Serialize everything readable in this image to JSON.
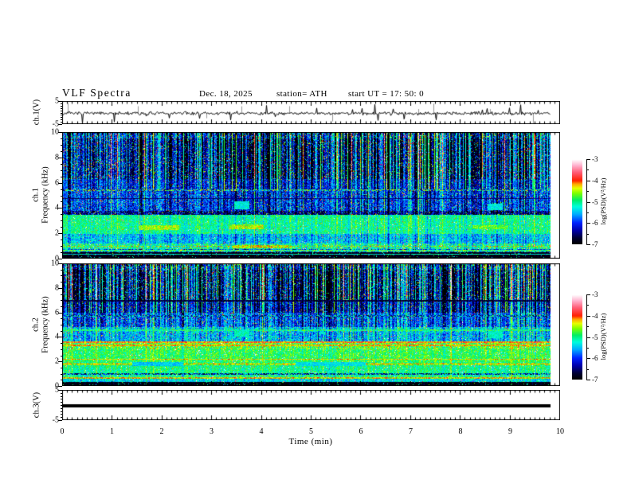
{
  "header": {
    "title": "VLF Spectra",
    "date": "Dec. 18, 2025",
    "station": "station= ATH",
    "start_ut": "start UT =  17: 50: 0"
  },
  "x_axis": {
    "label": "Time (min)",
    "ticks": [
      "0",
      "1",
      "2",
      "3",
      "4",
      "5",
      "6",
      "7",
      "8",
      "9",
      "10"
    ]
  },
  "panels": {
    "ch1_wave": {
      "ylabel": "ch.1(V)",
      "yticks": [
        "5",
        "-5"
      ]
    },
    "ch1_spec": {
      "ylabel_line1": "ch.1",
      "ylabel_line2": "Frequency (kHz)",
      "yticks": [
        "10",
        "8",
        "6",
        "4",
        "2",
        "0"
      ]
    },
    "ch2_spec": {
      "ylabel_line1": "ch.2",
      "ylabel_line2": "Frequency (kHz)",
      "yticks": [
        "10",
        "8",
        "6",
        "4",
        "2",
        "0"
      ]
    },
    "ch3_wave": {
      "ylabel": "ch.3(V)",
      "yticks": [
        "5",
        "-5"
      ]
    }
  },
  "colorbar": {
    "ticks": [
      "-3",
      "-4",
      "-5",
      "-6",
      "-7"
    ],
    "unit": "log(PSD)(V²/Hz)"
  },
  "chart_data": {
    "type": "heatmap",
    "description": "VLF receiver quick-look: ch.1 voltage waveform, ch.1 and ch.2 spectrograms (0-10 kHz, log PSD -7 to -3 V^2/Hz, rainbow colormap), ch.3 flat trace at ~ -0.5 V. Recording spans 0-9.8 min of a 10 min axis.",
    "x_range_min": [
      0,
      10
    ],
    "data_end_min": 9.8,
    "colormap": {
      "vmin": -7,
      "vmax": -3,
      "stops": [
        [
          0,
          "#000000"
        ],
        [
          0.07,
          "#000033"
        ],
        [
          0.16,
          "#0000aa"
        ],
        [
          0.25,
          "#0022ff"
        ],
        [
          0.35,
          "#00aaff"
        ],
        [
          0.44,
          "#00ffdd"
        ],
        [
          0.52,
          "#00ee66"
        ],
        [
          0.6,
          "#7dff00"
        ],
        [
          0.66,
          "#e8ff00"
        ],
        [
          0.71,
          "#ffa500"
        ],
        [
          0.75,
          "#ff2000"
        ],
        [
          0.85,
          "#ff5f7a"
        ],
        [
          0.93,
          "#ffb3cf"
        ],
        [
          1,
          "#ffffff"
        ]
      ]
    },
    "panels": [
      {
        "id": "ch1_wave",
        "type": "line",
        "ylabel": "ch.1(V)",
        "ylim": [
          -5,
          5
        ],
        "mean": -0.5,
        "noise_v": 1.1,
        "spike_rate": 0.035,
        "spike_v": 3.0,
        "gray_spikes": 12,
        "end_min": 9.8,
        "description": "broadband noise ~±1.5 V around -0.5 V with sporadic spikes toward ±5 V"
      },
      {
        "id": "ch1_spec",
        "type": "heatmap",
        "ylabel": "ch.1 Frequency (kHz)",
        "ylim_khz": [
          0,
          10
        ],
        "zlim_logpsd": [
          -7,
          -3
        ],
        "end_min": 9.8,
        "description": "sferic vertical streaks above 6 kHz (dark blue/black with green bursts); purple-red hiss line near 5.4 kHz; bright green band 1.9-3.45 kHz with orange-yellow patches near 2.4 kHz; orange speckle line ~0.95 kHz; black cutoff band below 0.45 kHz",
        "bands": [
          [
            9.5,
            10.01,
            -6.05,
            0.55,
            0.95,
            0.1
          ],
          [
            6.3,
            9.5,
            -6.45,
            0.55,
            1.1,
            0.1
          ],
          [
            5.5,
            6.3,
            -6.1,
            0.5,
            0.55,
            0.04
          ],
          [
            3.75,
            5.5,
            -6.0,
            0.55,
            0.45,
            0.05
          ],
          [
            3.45,
            3.75,
            -6.5,
            0.65,
            0.3,
            0.08
          ],
          [
            1.9,
            3.45,
            -5.05,
            0.38,
            0.2,
            0.02
          ],
          [
            1.15,
            1.9,
            -5.5,
            0.45,
            0.25,
            0.03
          ],
          [
            0.7,
            1.15,
            -5.1,
            0.6,
            0.2,
            0.03
          ],
          [
            0.45,
            0.7,
            -5.9,
            0.8,
            0.15,
            0.04
          ],
          [
            0,
            0.45,
            -6.9,
            0.25,
            0.05,
            0.05
          ]
        ],
        "lines": [
          [
            5.4,
            0.07,
            -5.4,
            1.3
          ],
          [
            4.75,
            0.04,
            -6.55,
            0.3
          ],
          [
            0.95,
            0.06,
            -4.6,
            0.8
          ],
          [
            0.6,
            0.04,
            -4.9,
            0.6
          ],
          [
            0.3,
            0.03,
            -5.3,
            0.5
          ]
        ],
        "patches": [
          [
            1.55,
            2.35,
            2.25,
            2.6,
            -4.55,
            0.35
          ],
          [
            3.35,
            4.05,
            2.3,
            2.7,
            -4.5,
            0.4
          ],
          [
            8.25,
            8.95,
            2.3,
            2.6,
            -4.7,
            0.35
          ],
          [
            3.45,
            3.75,
            3.9,
            4.5,
            -5.25,
            0.3
          ],
          [
            8.55,
            8.85,
            3.8,
            4.35,
            -5.3,
            0.3
          ],
          [
            3.4,
            4.6,
            0.8,
            1.05,
            -4.45,
            0.5
          ]
        ]
      },
      {
        "id": "ch2_spec",
        "type": "heatmap",
        "ylabel": "ch.2 Frequency (kHz)",
        "ylim_khz": [
          0,
          10
        ],
        "zlim_logpsd": [
          -7,
          -3
        ],
        "end_min": 9.8,
        "description": "sferic streaks above 6.9 kHz; dark line ~7 kHz; red hiss lines at 3.3/3.55 kHz; yellow line 2.15 kHz; broad bright green 1-3 kHz; orange stripe ~1.78 kHz with muted gray gaps; orange line 0.63 kHz; cyan band 0.3-0.55 kHz; black cutoff below 0.3 kHz",
        "bands": [
          [
            9.5,
            10.01,
            -6.0,
            0.55,
            0.95,
            0.1
          ],
          [
            6.9,
            9.5,
            -6.4,
            0.55,
            1.1,
            0.1
          ],
          [
            5.95,
            6.9,
            -6.25,
            0.5,
            0.6,
            0.05
          ],
          [
            4.8,
            5.95,
            -5.85,
            0.5,
            0.45,
            0.05
          ],
          [
            4.35,
            4.8,
            -5.4,
            0.55,
            0.3,
            0.04
          ],
          [
            3.65,
            4.35,
            -5.5,
            0.5,
            0.3,
            0.04
          ],
          [
            3.0,
            3.65,
            -4.75,
            0.5,
            0.2,
            0.03
          ],
          [
            1.95,
            3.0,
            -4.85,
            0.35,
            0.15,
            0.03
          ],
          [
            1.0,
            1.95,
            -5.0,
            0.35,
            0.15,
            0.03
          ],
          [
            0.55,
            1.0,
            -5.05,
            0.5,
            0.15,
            0.03
          ],
          [
            0.3,
            0.55,
            -5.35,
            0.45,
            0.1,
            0.04
          ],
          [
            0,
            0.3,
            -6.9,
            0.25,
            0.05,
            0.05
          ]
        ],
        "lines": [
          [
            6.95,
            0.06,
            -6.75,
            0.35
          ],
          [
            5.7,
            0.07,
            -5.8,
            1.1
          ],
          [
            4.55,
            0.05,
            -5.0,
            0.5
          ],
          [
            3.55,
            0.06,
            -4.1,
            0.4
          ],
          [
            3.3,
            0.05,
            -4.25,
            0.4
          ],
          [
            2.15,
            0.05,
            -4.3,
            0.35
          ],
          [
            1.78,
            0.1,
            -4.5,
            0.5
          ],
          [
            0.94,
            0.05,
            -5.9,
            1.2
          ],
          [
            0.63,
            0.05,
            -4.35,
            0.5
          ]
        ],
        "patches": [
          [
            1.4,
            2.42,
            1.62,
            1.95,
            -5.45,
            0.3
          ],
          [
            4.68,
            6.1,
            1.62,
            1.95,
            -5.35,
            0.3
          ],
          [
            3.45,
            3.75,
            4.0,
            4.6,
            -5.15,
            0.3
          ],
          [
            8.55,
            8.85,
            3.9,
            4.45,
            -5.2,
            0.3
          ]
        ]
      },
      {
        "id": "ch3_wave",
        "type": "line",
        "ylabel": "ch.3(V)",
        "ylim": [
          -5,
          5
        ],
        "value": -0.5,
        "thickness_px": 4,
        "end_min": 9.8,
        "description": "flat constant trace (dead channel) drawn as a thick black line"
      }
    ]
  }
}
